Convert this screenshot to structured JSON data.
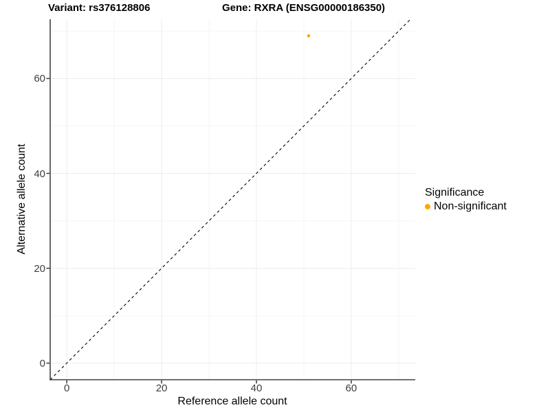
{
  "title": {
    "variant": "Variant: rs376128806",
    "gene": "Gene: RXRA (ENSG00000186350)"
  },
  "legend": {
    "title": "Significance",
    "items": [
      {
        "label": "Non-significant",
        "color": "#FFA500"
      }
    ]
  },
  "chart_data": {
    "type": "scatter",
    "title": "Variant: rs376128806   Gene: RXRA (ENSG00000186350)",
    "xlabel": "Reference allele count",
    "ylabel": "Alternative allele count",
    "xlim": [
      -3.5,
      73.5
    ],
    "ylim": [
      -3.5,
      72.5
    ],
    "x_ticks": [
      0,
      20,
      40,
      60
    ],
    "y_ticks": [
      0,
      20,
      40,
      60
    ],
    "x_minor_ticks": [
      10,
      30,
      50,
      70
    ],
    "y_minor_ticks": [
      10,
      30,
      50,
      70
    ],
    "grid": "major+minor",
    "legend_position": "right",
    "series": [
      {
        "name": "Non-significant",
        "color": "#FFA500",
        "points": [
          {
            "x": 51,
            "y": 69
          }
        ]
      }
    ],
    "reference_line": {
      "type": "y=x",
      "style": "dashed",
      "color": "#000000"
    },
    "colors": {
      "major_grid": "#ECECEC",
      "minor_grid": "#F5F5F5",
      "axis_line": "#404040",
      "tick_mark": "#404040"
    }
  }
}
